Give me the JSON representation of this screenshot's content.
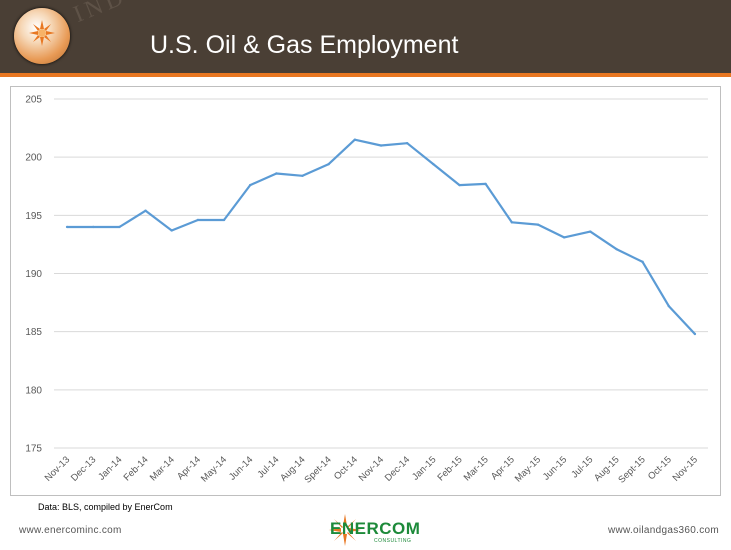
{
  "header": {
    "title": "U.S. Oil & Gas Employment",
    "watermark": "INDUSTRY"
  },
  "source_note": "Data: BLS, compiled by EnerCom",
  "footer": {
    "left_url": "www.enercominc.com",
    "right_url": "www.oilandgas360.com",
    "brand_name": "ENERCOM",
    "brand_sub": "CONSULTING"
  },
  "colors": {
    "header_bg": "#4a3f35",
    "accent": "#e87722",
    "line": "#5b9bd5",
    "brand_green": "#1d8a3a"
  },
  "chart_data": {
    "type": "line",
    "title": "",
    "xlabel": "",
    "ylabel": "",
    "categories": [
      "Nov-13",
      "Dec-13",
      "Jan-14",
      "Feb-14",
      "Mar-14",
      "Apr-14",
      "May-14",
      "Jun-14",
      "Jul-14",
      "Aug-14",
      "Spet-14",
      "Oct-14",
      "Nov-14",
      "Dec-14",
      "Jan-15",
      "Feb-15",
      "Mar-15",
      "Apr-15",
      "May-15",
      "Jun-15",
      "Jul-15",
      "Aug-15",
      "Sept-15",
      "Oct-15",
      "Nov-15"
    ],
    "series": [
      {
        "values": [
          194.0,
          194.0,
          194.0,
          195.4,
          193.7,
          194.6,
          194.6,
          197.6,
          198.6,
          198.4,
          199.4,
          201.5,
          201.0,
          201.2,
          199.4,
          197.6,
          197.7,
          194.4,
          194.2,
          193.1,
          193.6,
          192.1,
          191.0,
          187.2,
          184.8
        ]
      }
    ],
    "ylim": [
      175,
      205
    ],
    "yticks": [
      175,
      180,
      185,
      190,
      195,
      200,
      205
    ],
    "grid": true,
    "legend": "none"
  }
}
